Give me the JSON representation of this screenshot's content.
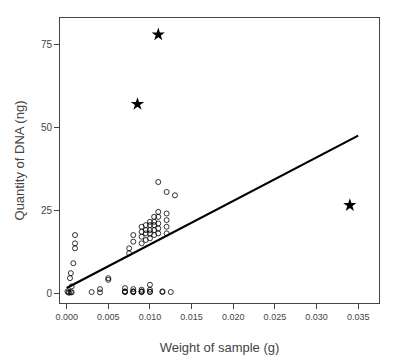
{
  "chart_data": {
    "type": "scatter",
    "xlabel": "Weight of sample (g)",
    "ylabel": "Quantity of DNA (ng)",
    "xlim": [
      -0.0008,
      0.0375
    ],
    "ylim": [
      -3,
      83
    ],
    "xticks": [
      {
        "value": 0.0,
        "label": "0.000"
      },
      {
        "value": 0.005,
        "label": "0.005"
      },
      {
        "value": 0.01,
        "label": "0.010"
      },
      {
        "value": 0.015,
        "label": "0.015"
      },
      {
        "value": 0.02,
        "label": "0.020"
      },
      {
        "value": 0.025,
        "label": "0.025"
      },
      {
        "value": 0.03,
        "label": "0.030"
      },
      {
        "value": 0.035,
        "label": "0.035"
      }
    ],
    "yticks": [
      0,
      25,
      50,
      75
    ],
    "grid": false,
    "series": [
      {
        "type": "line",
        "line_style": "solid",
        "color": "#000000",
        "x": [
          0.0,
          0.035
        ],
        "values": [
          1.5,
          47.5
        ]
      },
      {
        "type": "scatter",
        "marker": "circle-open",
        "color": "#000000",
        "x": [
          0.0001,
          0.0002,
          0.0003,
          0.0004,
          0.0005,
          0.0006,
          0.0008,
          0.001,
          0.001,
          0.001,
          0.0005,
          0.0006,
          0.003,
          0.004,
          0.004,
          0.005,
          0.005,
          0.007,
          0.007,
          0.007,
          0.007,
          0.0075,
          0.0075,
          0.008,
          0.008,
          0.008,
          0.008,
          0.008,
          0.008,
          0.009,
          0.009,
          0.009,
          0.009,
          0.009,
          0.009,
          0.009,
          0.009,
          0.0095,
          0.0095,
          0.0095,
          0.0095,
          0.01,
          0.01,
          0.01,
          0.01,
          0.01,
          0.01,
          0.01,
          0.01,
          0.01,
          0.0105,
          0.0105,
          0.0105,
          0.0105,
          0.0105,
          0.011,
          0.011,
          0.011,
          0.011,
          0.011,
          0.011,
          0.0115,
          0.0115,
          0.012,
          0.012,
          0.012,
          0.012,
          0.012,
          0.013,
          0.0125
        ],
        "values": [
          0.5,
          0.2,
          0.1,
          4.5,
          6.0,
          2.0,
          9.0,
          17.5,
          15.0,
          13.5,
          0.3,
          0.2,
          0.3,
          0.2,
          1.2,
          4.0,
          4.5,
          0.3,
          0.4,
          0.5,
          1.5,
          12.0,
          13.5,
          0.3,
          0.4,
          0.5,
          1.2,
          15.5,
          17.5,
          0.3,
          0.4,
          0.5,
          1.0,
          15.0,
          17.0,
          18.5,
          20.0,
          16.0,
          18.0,
          19.0,
          20.5,
          0.3,
          0.4,
          1.0,
          2.5,
          16.5,
          18.0,
          19.0,
          20.5,
          21.5,
          17.5,
          19.0,
          20.5,
          21.5,
          23.0,
          18.0,
          19.5,
          21.0,
          23.0,
          24.5,
          33.5,
          0.3,
          0.5,
          18.0,
          20.0,
          22.0,
          24.0,
          30.5,
          29.5,
          0.3
        ]
      },
      {
        "type": "scatter",
        "marker": "star",
        "color": "#000000",
        "x": [
          0.011,
          0.0085,
          0.034
        ],
        "values": [
          78.0,
          57.0,
          26.5
        ]
      }
    ]
  }
}
